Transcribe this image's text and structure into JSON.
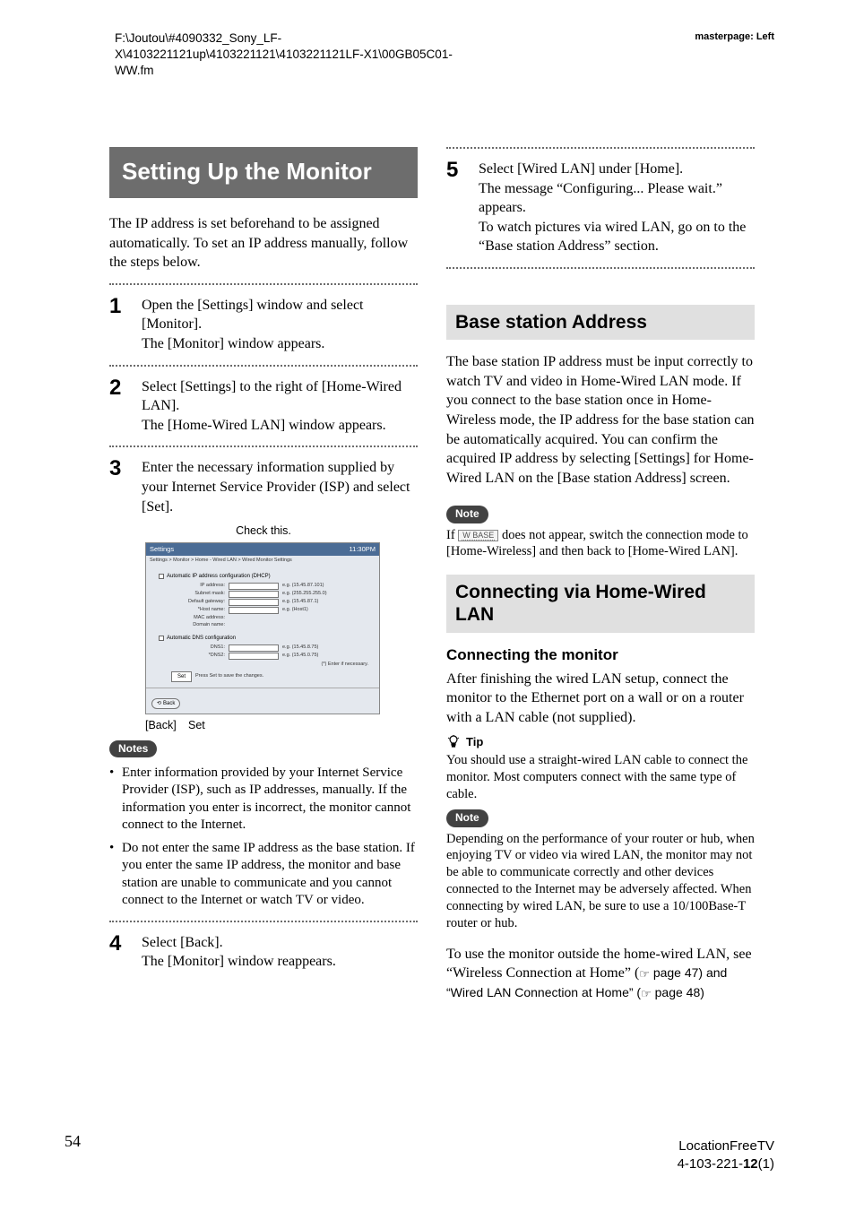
{
  "header": {
    "path": "F:\\Joutou\\#4090332_Sony_LF-X\\4103221121up\\4103221121\\4103221121LF-X1\\00GB05C01-WW.fm",
    "masterpage": "masterpage: Left"
  },
  "left": {
    "title": "Setting Up the Monitor",
    "intro": "The IP address is set beforehand to be assigned automatically. To set an IP address manually, follow the steps below.",
    "steps": {
      "1": {
        "num": "1",
        "text": "Open the [Settings] window and select [Monitor].\nThe [Monitor] window appears."
      },
      "2": {
        "num": "2",
        "text": "Select [Settings] to the right of [Home-Wired LAN].\nThe [Home-Wired LAN] window appears."
      },
      "3": {
        "num": "3",
        "text": "Enter the necessary information supplied by your Internet Service Provider (ISP) and select [Set]."
      },
      "4": {
        "num": "4",
        "text": "Select [Back].\nThe [Monitor] window reappears."
      }
    },
    "check_caption": "Check this.",
    "mock": {
      "titlebar_left": "Settings",
      "titlebar_right": "11:30PM",
      "breadcrumb": "Settings > Monitor > Home - Wired LAN > Wired Monitor Settings",
      "auto_ip": "Automatic IP address configuration (DHCP)",
      "rows": {
        "ip": {
          "label": "IP address:",
          "eg": "e.g. (15.45.87.101)"
        },
        "subnet": {
          "label": "Subnet mask:",
          "eg": "e.g. (255.255.255.0)"
        },
        "gateway": {
          "label": "Default gateway:",
          "eg": "e.g. (15.45.87.1)"
        },
        "host": {
          "label": "*Host name:",
          "eg": "e.g. (Host1)"
        },
        "mac": {
          "label": "MAC address:",
          "val": ""
        },
        "domain": {
          "label": "Domain name:",
          "val": ""
        }
      },
      "auto_dns": "Automatic DNS configuration",
      "dns": {
        "dns1": {
          "label": "DNS1:",
          "eg": "e.g. (15.45.8.75)"
        },
        "dns2": {
          "label": "*DNS2:",
          "eg": "e.g. (15.45.0.75)"
        }
      },
      "enter_if": "(*) Enter if necessary.",
      "set_btn": "Set",
      "press": "Press Set to save the changes.",
      "back_btn": "Back"
    },
    "mock_labels": {
      "back": "[Back]",
      "set": "Set"
    },
    "notes_label": "Notes",
    "notes": [
      "Enter information provided by your Internet Service Provider (ISP), such as IP addresses, manually. If the information you enter is incorrect, the monitor cannot connect to the Internet.",
      "Do not enter the same IP address as the base station. If you enter the same IP address, the monitor and base station are unable to communicate and you cannot connect to the Internet or watch TV or video."
    ]
  },
  "right": {
    "step5": {
      "num": "5",
      "text": "Select [Wired LAN] under [Home].\nThe message “Configuring... Please wait.” appears.\nTo watch pictures via wired LAN, go on to the “Base station Address” section."
    },
    "base_heading": "Base station Address",
    "base_text": "The base station IP address must be input correctly to watch TV and video in Home-Wired LAN mode. If you connect to the base station once in Home-Wireless mode, the IP address for the base station can be automatically acquired. You can confirm the acquired IP address by selecting [Settings] for Home-Wired LAN on the [Base station Address] screen.",
    "note_label": "Note",
    "base_note_a": "If ",
    "base_note_badge": "W BASE",
    "base_note_b": " does not appear, switch the connection mode to [Home-Wireless] and then back to [Home-Wired LAN].",
    "connect_heading": "Connecting via Home-Wired LAN",
    "connect_sub": "Connecting the monitor",
    "connect_text": "After finishing the wired LAN setup, connect the monitor to the Ethernet port on a wall or on a router with a LAN cable (not supplied).",
    "tip_label": "Tip",
    "tip_text": "You should use a straight-wired LAN cable to connect the monitor. Most computers connect with the same type of cable.",
    "note2_text": "Depending on the performance of your router or hub, when enjoying TV or video via wired LAN, the monitor may not be able to communicate correctly and other devices connected to the Internet may be adversely affected. When connecting by wired LAN, be sure to use a 10/100Base-T router or hub.",
    "outro_a": "To use the monitor outside the home-wired LAN, see “Wireless Connection at Home” (",
    "outro_ref1": " page 47) and “Wired LAN Connection at Home” (",
    "outro_ref2": " page 48)"
  },
  "footer": {
    "pagenum": "54",
    "model": "LocationFreeTV",
    "doc": "4-103-221-12(1)"
  }
}
